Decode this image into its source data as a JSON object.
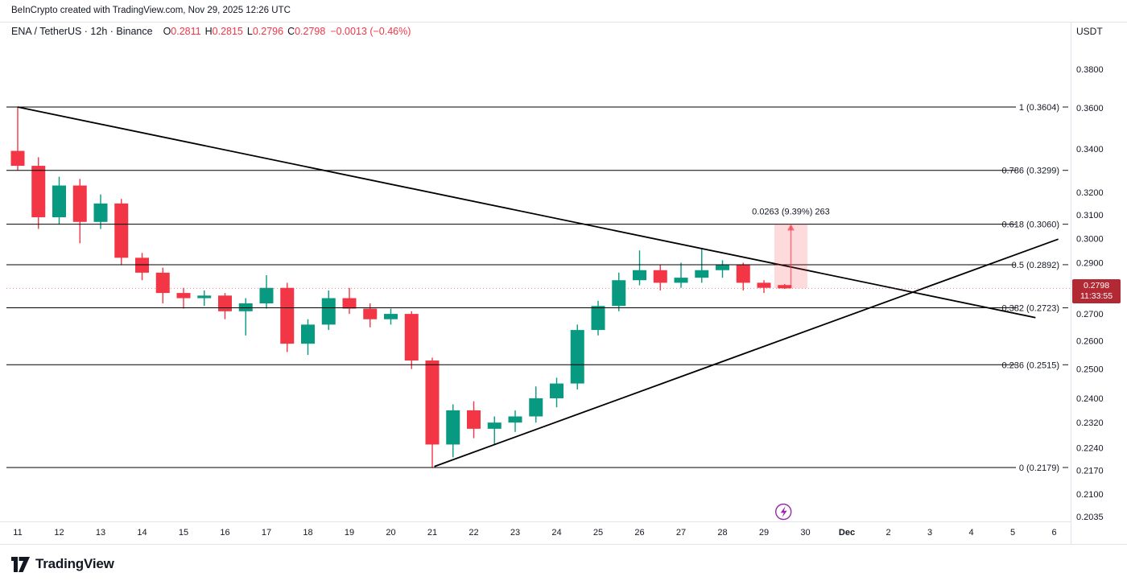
{
  "header": {
    "attribution": "BeInCrypto created with TradingView.com, Nov 29, 2025 12:26 UTC"
  },
  "symbol_bar": {
    "title": "ENA / TetherUS · 12h · Binance",
    "ohlc": {
      "o_label": "O",
      "o_value": "0.2811",
      "h_label": "H",
      "h_value": "0.2815",
      "l_label": "L",
      "l_value": "0.2796",
      "c_label": "C",
      "c_value": "0.2798",
      "change": "−0.0013 (−0.46%)"
    },
    "currency": "USDT"
  },
  "price_badge": {
    "price": "0.2798",
    "countdown": "11:33:55"
  },
  "footer": {
    "logo_text": "TradingView"
  },
  "colors": {
    "up": "#089981",
    "down": "#f23645",
    "badge_bg": "#b22833",
    "text": "#131722",
    "border": "#e0e3eb",
    "drawing": "#000000",
    "measure_fill": "rgba(242,54,69,0.18)",
    "measure_arrow": "rgba(242,54,69,0.65)",
    "event": "#9c27b0"
  },
  "chart_data": {
    "type": "candlestick",
    "symbol": "ENA/USDT",
    "exchange": "Binance",
    "interval": "12h",
    "price_scale": "log",
    "grid": "off",
    "legend_position": "none",
    "price_axis_range": [
      0.202,
      0.396
    ],
    "last_price": 0.2798,
    "price_axis_ticks": [
      0.38,
      0.36,
      0.34,
      0.32,
      0.31,
      0.3,
      0.29,
      0.27,
      0.26,
      0.25,
      0.24,
      0.232,
      0.224,
      0.217,
      0.21,
      0.2035
    ],
    "time_axis_labels": [
      {
        "label": "11",
        "day": 0
      },
      {
        "label": "12",
        "day": 1
      },
      {
        "label": "13",
        "day": 2
      },
      {
        "label": "14",
        "day": 3
      },
      {
        "label": "15",
        "day": 4
      },
      {
        "label": "16",
        "day": 5
      },
      {
        "label": "17",
        "day": 6
      },
      {
        "label": "18",
        "day": 7
      },
      {
        "label": "19",
        "day": 8
      },
      {
        "label": "20",
        "day": 9
      },
      {
        "label": "21",
        "day": 10
      },
      {
        "label": "22",
        "day": 11
      },
      {
        "label": "23",
        "day": 12
      },
      {
        "label": "24",
        "day": 13
      },
      {
        "label": "25",
        "day": 14
      },
      {
        "label": "26",
        "day": 15
      },
      {
        "label": "27",
        "day": 16
      },
      {
        "label": "28",
        "day": 17
      },
      {
        "label": "29",
        "day": 18
      },
      {
        "label": "30",
        "day": 19
      },
      {
        "label": "Dec",
        "day": 20,
        "bold": true
      },
      {
        "label": "2",
        "day": 21
      },
      {
        "label": "3",
        "day": 22
      },
      {
        "label": "4",
        "day": 23
      },
      {
        "label": "5",
        "day": 24
      },
      {
        "label": "6",
        "day": 25
      }
    ],
    "fib_levels": [
      {
        "label": "1 (0.3604)",
        "price": 0.3604
      },
      {
        "label": "0.786 (0.3299)",
        "price": 0.3299
      },
      {
        "label": "0.618 (0.3060)",
        "price": 0.306
      },
      {
        "label": "0.5 (0.2892)",
        "price": 0.2892
      },
      {
        "label": "0.382 (0.2723)",
        "price": 0.2723
      },
      {
        "label": "0.236 (0.2515)",
        "price": 0.2515
      },
      {
        "label": "0 (0.2179)",
        "price": 0.2179
      }
    ],
    "trendlines": [
      {
        "name": "descending-trendline",
        "day1": 0,
        "price1": 0.3604,
        "day2": 24.55,
        "price2": 0.2686
      },
      {
        "name": "ascending-trendline",
        "day1": 10.05,
        "price1": 0.2182,
        "day2": 25.1,
        "price2": 0.2997
      }
    ],
    "measure_tool": {
      "label": "0.0263 (9.39%) 263",
      "day_from": 18.25,
      "day_to": 19.05,
      "price_from": 0.2798,
      "price_to": 0.3061
    },
    "event_marker": {
      "type": "lightning",
      "day": 18.47
    },
    "candles": [
      {
        "t": "Nov 11 00:00",
        "o": 0.339,
        "h": 0.3604,
        "l": 0.33,
        "c": 0.332
      },
      {
        "t": "Nov 11 12:00",
        "o": 0.332,
        "h": 0.336,
        "l": 0.304,
        "c": 0.309
      },
      {
        "t": "Nov 12 00:00",
        "o": 0.309,
        "h": 0.327,
        "l": 0.306,
        "c": 0.323
      },
      {
        "t": "Nov 12 12:00",
        "o": 0.323,
        "h": 0.326,
        "l": 0.298,
        "c": 0.307
      },
      {
        "t": "Nov 13 00:00",
        "o": 0.307,
        "h": 0.319,
        "l": 0.304,
        "c": 0.315
      },
      {
        "t": "Nov 13 12:00",
        "o": 0.315,
        "h": 0.317,
        "l": 0.289,
        "c": 0.292
      },
      {
        "t": "Nov 14 00:00",
        "o": 0.292,
        "h": 0.294,
        "l": 0.283,
        "c": 0.286
      },
      {
        "t": "Nov 14 12:00",
        "o": 0.286,
        "h": 0.288,
        "l": 0.274,
        "c": 0.278
      },
      {
        "t": "Nov 15 00:00",
        "o": 0.278,
        "h": 0.28,
        "l": 0.272,
        "c": 0.276
      },
      {
        "t": "Nov 15 12:00",
        "o": 0.276,
        "h": 0.279,
        "l": 0.273,
        "c": 0.277
      },
      {
        "t": "Nov 16 00:00",
        "o": 0.277,
        "h": 0.278,
        "l": 0.268,
        "c": 0.271
      },
      {
        "t": "Nov 16 12:00",
        "o": 0.271,
        "h": 0.276,
        "l": 0.262,
        "c": 0.274
      },
      {
        "t": "Nov 17 00:00",
        "o": 0.274,
        "h": 0.285,
        "l": 0.272,
        "c": 0.28
      },
      {
        "t": "Nov 17 12:00",
        "o": 0.28,
        "h": 0.282,
        "l": 0.256,
        "c": 0.259
      },
      {
        "t": "Nov 18 00:00",
        "o": 0.259,
        "h": 0.268,
        "l": 0.255,
        "c": 0.266
      },
      {
        "t": "Nov 18 12:00",
        "o": 0.266,
        "h": 0.279,
        "l": 0.264,
        "c": 0.276
      },
      {
        "t": "Nov 19 00:00",
        "o": 0.276,
        "h": 0.28,
        "l": 0.27,
        "c": 0.272
      },
      {
        "t": "Nov 19 12:00",
        "o": 0.272,
        "h": 0.274,
        "l": 0.265,
        "c": 0.268
      },
      {
        "t": "Nov 20 00:00",
        "o": 0.268,
        "h": 0.272,
        "l": 0.266,
        "c": 0.27
      },
      {
        "t": "Nov 20 12:00",
        "o": 0.27,
        "h": 0.271,
        "l": 0.25,
        "c": 0.253
      },
      {
        "t": "Nov 21 00:00",
        "o": 0.253,
        "h": 0.254,
        "l": 0.2179,
        "c": 0.225
      },
      {
        "t": "Nov 21 12:00",
        "o": 0.225,
        "h": 0.238,
        "l": 0.221,
        "c": 0.236
      },
      {
        "t": "Nov 22 00:00",
        "o": 0.236,
        "h": 0.239,
        "l": 0.227,
        "c": 0.23
      },
      {
        "t": "Nov 22 12:00",
        "o": 0.23,
        "h": 0.234,
        "l": 0.225,
        "c": 0.232
      },
      {
        "t": "Nov 23 00:00",
        "o": 0.232,
        "h": 0.236,
        "l": 0.229,
        "c": 0.234
      },
      {
        "t": "Nov 23 12:00",
        "o": 0.234,
        "h": 0.244,
        "l": 0.232,
        "c": 0.24
      },
      {
        "t": "Nov 24 00:00",
        "o": 0.24,
        "h": 0.247,
        "l": 0.237,
        "c": 0.245
      },
      {
        "t": "Nov 24 12:00",
        "o": 0.245,
        "h": 0.266,
        "l": 0.243,
        "c": 0.264
      },
      {
        "t": "Nov 25 00:00",
        "o": 0.264,
        "h": 0.275,
        "l": 0.262,
        "c": 0.273
      },
      {
        "t": "Nov 25 12:00",
        "o": 0.273,
        "h": 0.286,
        "l": 0.271,
        "c": 0.283
      },
      {
        "t": "Nov 26 00:00",
        "o": 0.283,
        "h": 0.295,
        "l": 0.281,
        "c": 0.287
      },
      {
        "t": "Nov 26 12:00",
        "o": 0.287,
        "h": 0.289,
        "l": 0.279,
        "c": 0.282
      },
      {
        "t": "Nov 27 00:00",
        "o": 0.282,
        "h": 0.29,
        "l": 0.28,
        "c": 0.284
      },
      {
        "t": "Nov 27 12:00",
        "o": 0.284,
        "h": 0.296,
        "l": 0.282,
        "c": 0.287
      },
      {
        "t": "Nov 28 00:00",
        "o": 0.287,
        "h": 0.291,
        "l": 0.284,
        "c": 0.289
      },
      {
        "t": "Nov 28 12:00",
        "o": 0.289,
        "h": 0.29,
        "l": 0.279,
        "c": 0.282
      },
      {
        "t": "Nov 29 00:00",
        "o": 0.282,
        "h": 0.283,
        "l": 0.278,
        "c": 0.28
      },
      {
        "t": "Nov 29 12:00",
        "o": 0.2811,
        "h": 0.2815,
        "l": 0.2796,
        "c": 0.2798
      }
    ]
  }
}
